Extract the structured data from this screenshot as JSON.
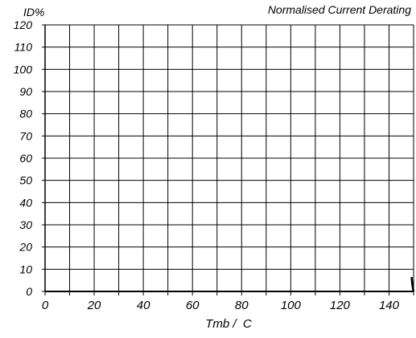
{
  "chart_data": {
    "type": "line",
    "title": "Normalised Current Derating",
    "ylabel": "ID%",
    "xlabel": "Tmb /  C",
    "xlim": [
      0,
      150
    ],
    "ylim": [
      0,
      120
    ],
    "x_ticks": [
      0,
      20,
      40,
      60,
      80,
      100,
      120,
      140
    ],
    "y_ticks": [
      0,
      10,
      20,
      30,
      40,
      50,
      60,
      70,
      80,
      90,
      100,
      110,
      120
    ],
    "x_minor_ticks": [
      0,
      10,
      20,
      30,
      40,
      50,
      60,
      70,
      80,
      90,
      100,
      110,
      120,
      130,
      140,
      150
    ],
    "grid": true,
    "legend": "none",
    "series": [
      {
        "x": [
          149.2,
          149.4,
          149.7,
          150
        ],
        "y": [
          6.5,
          4.0,
          1.5,
          0
        ]
      }
    ]
  },
  "colors": {
    "background": "#ffffff",
    "axis": "#000000",
    "grid": "#000000",
    "line": "#000000",
    "text": "#000000"
  }
}
